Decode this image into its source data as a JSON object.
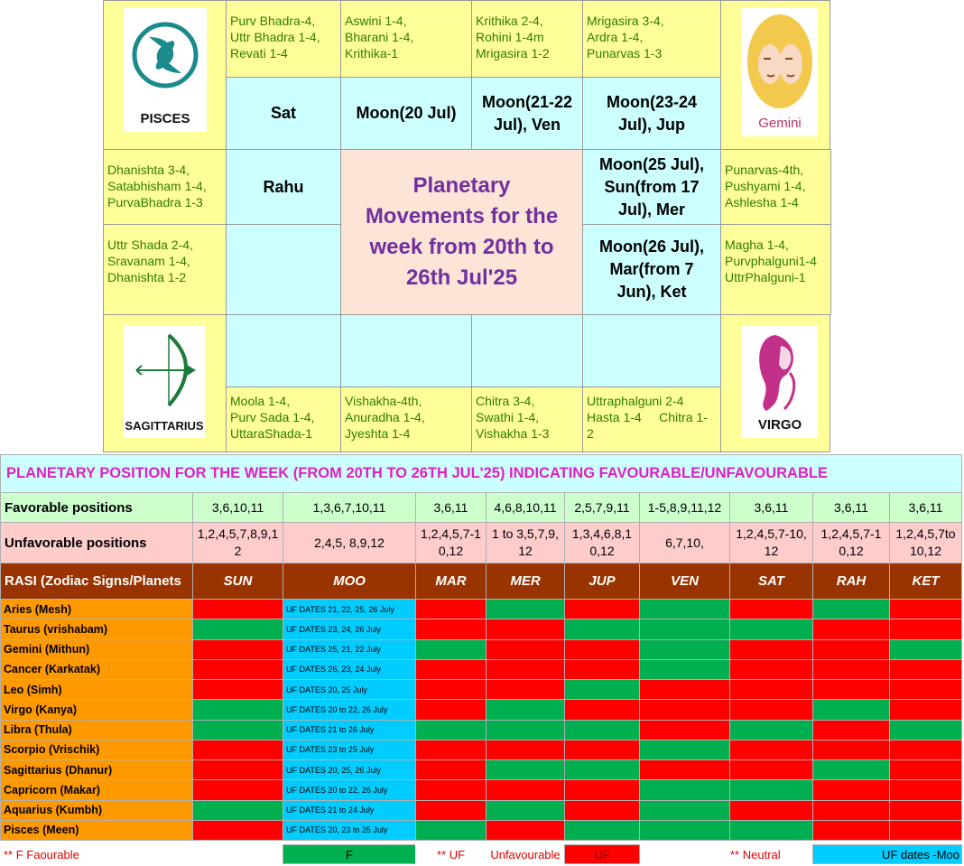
{
  "chart_box": {
    "title": [
      "Planetary",
      "Movements for the",
      "week from 20th to",
      "26th Jul'25"
    ],
    "signs": {
      "pisces": "PISCES",
      "gemini": "Gemini",
      "sagittarius": "SAGITTARIUS",
      "virgo": "VIRGO"
    },
    "nakshatras": [
      [
        "Purv Bhadra-4,",
        "Uttr Bhadra 1-4,",
        "Revati 1-4"
      ],
      [
        "Aswini 1-4,",
        "Bharani 1-4,",
        "Krithika-1"
      ],
      [
        "Krithika 2-4,",
        "Rohini 1-4m",
        "Mrigasira 1-2"
      ],
      [
        "Mrigasira 3-4,",
        "Ardra 1-4,",
        "Punarvas 1-3"
      ],
      [
        "Punarvas-4th,",
        "Pushyami 1-4,",
        "Ashlesha 1-4"
      ],
      [
        "Magha 1-4,",
        "Purvphalguni1-4",
        "UttrPhalguni-1"
      ],
      [
        "Uttraphalguni 2-4",
        "Hasta 1-4     Chitra 1-",
        "2"
      ],
      [
        "Chitra 3-4,",
        "Swathi 1-4,",
        "Vishakha 1-3"
      ],
      [
        "Vishakha-4th,",
        "Anuradha 1-4,",
        "Jyeshta 1-4"
      ],
      [
        "Moola 1-4,",
        "Purv Sada 1-4,",
        "UttaraShada-1"
      ],
      [
        "Uttr Shada 2-4,",
        "Sravanam 1-4,",
        "Dhanishta 1-2"
      ],
      [
        "Dhanishta 3-4,",
        "Satabhisham 1-4,",
        "PurvaBhadra 1-3"
      ]
    ],
    "planets": [
      [
        "Sat"
      ],
      [
        "Moon(20 Jul)"
      ],
      [
        "Moon(21-22",
        "Jul), Ven"
      ],
      [
        "Moon(23-24",
        "Jul), Jup"
      ],
      [
        "Moon(25 Jul),",
        "Sun(from 17",
        "Jul), Mer"
      ],
      [
        "Moon(26 Jul),",
        "Mar(from 7",
        "Jun), Ket"
      ],
      [
        "Rahu"
      ]
    ]
  },
  "table": {
    "title": "PLANETARY POSITION FOR THE WEEK (FROM 20TH TO 26TH JUL'25) INDICATING FAVOURABLE/UNFAVOURABLE",
    "favorable": {
      "label": "Favorable positions",
      "values": [
        "3,6,10,11",
        "1,3,6,7,10,11",
        "3,6,11",
        "4,6,8,10,11",
        "2,5,7,9,11",
        "1-5,8,9,11,12",
        "3,6,11",
        "3,6,11",
        "3,6,11"
      ]
    },
    "unfavorable": {
      "label": "Unfavorable positions",
      "values": [
        "1,2,4,5,7,8,9,12",
        "2,4,5, 8,9,12",
        "1,2,4,5,7-10,12",
        "1 to 3,5,7,9,12",
        "1,3,4,6,8,10,12",
        "6,7,10,",
        "1,2,4,5,7-10,12",
        "1,2,4,5,7-10,12",
        "1,2,4,5,7to 10,12"
      ]
    },
    "header": [
      "RASI (Zodiac Signs/Planets",
      "SUN",
      "MOO",
      "MAR",
      "MER",
      "JUP",
      "VEN",
      "SAT",
      "RAH",
      "KET"
    ],
    "rows": [
      {
        "rasi": "Aries (Mesh)",
        "moon": "UF DATES 21, 22, 25, 26 July",
        "colors": [
          "#ff0000",
          "#ff0000",
          "#00b050",
          "#ff0000",
          "#00b050",
          "#ff0000",
          "#00b050",
          "#ff0000"
        ]
      },
      {
        "rasi": "Taurus (vrishabam)",
        "moon": "UF DATES 23, 24, 26 July",
        "colors": [
          "#00b050",
          "#ff0000",
          "#ff0000",
          "#00b050",
          "#00b050",
          "#00b050",
          "#ff0000",
          "#ff0000"
        ]
      },
      {
        "rasi": "Gemini (Mithun)",
        "moon": "UF DATES 25, 21, 22 July",
        "colors": [
          "#ff0000",
          "#00b050",
          "#ff0000",
          "#ff0000",
          "#00b050",
          "#ff0000",
          "#ff0000",
          "#00b050"
        ]
      },
      {
        "rasi": "Cancer (Karkatak)",
        "moon": "UF DATES 26, 23, 24 July",
        "colors": [
          "#ff0000",
          "#ff0000",
          "#ff0000",
          "#ff0000",
          "#00b050",
          "#ff0000",
          "#ff0000",
          "#ff0000"
        ]
      },
      {
        "rasi": "Leo (Simh)",
        "moon": "UF DATES 20, 25 July",
        "colors": [
          "#ff0000",
          "#ff0000",
          "#ff0000",
          "#00b050",
          "#ff0000",
          "#ff0000",
          "#ff0000",
          "#ff0000"
        ]
      },
      {
        "rasi": "Virgo (Kanya)",
        "moon": "UF DATES 20 to 22, 26 July",
        "colors": [
          "#00b050",
          "#ff0000",
          "#00b050",
          "#ff0000",
          "#ff0000",
          "#ff0000",
          "#00b050",
          "#ff0000"
        ]
      },
      {
        "rasi": "Libra (Thula)",
        "moon": "UF DATES 21 to 26 July",
        "colors": [
          "#00b050",
          "#00b050",
          "#00b050",
          "#00b050",
          "#ff0000",
          "#00b050",
          "#ff0000",
          "#00b050"
        ]
      },
      {
        "rasi": "Scorpio (Vrischik)",
        "moon": "UF DATES 23 to 25 July",
        "colors": [
          "#ff0000",
          "#ff0000",
          "#ff0000",
          "#ff0000",
          "#00b050",
          "#ff0000",
          "#ff0000",
          "#ff0000"
        ]
      },
      {
        "rasi": "Sagittarius (Dhanur)",
        "moon": "UF DATES 20, 25, 26 July",
        "colors": [
          "#ff0000",
          "#ff0000",
          "#00b050",
          "#00b050",
          "#ff0000",
          "#ff0000",
          "#00b050",
          "#ff0000"
        ]
      },
      {
        "rasi": "Capricorn (Makar)",
        "moon": "UF DATES 20 to 22, 26 July",
        "colors": [
          "#ff0000",
          "#ff0000",
          "#ff0000",
          "#ff0000",
          "#00b050",
          "#00b050",
          "#ff0000",
          "#ff0000"
        ]
      },
      {
        "rasi": "Aquarius (Kumbh)",
        "moon": "UF DATES 21 to 24 July",
        "colors": [
          "#00b050",
          "#ff0000",
          "#00b050",
          "#ff0000",
          "#00b050",
          "#ff0000",
          "#ff0000",
          "#ff0000"
        ]
      },
      {
        "rasi": "Pisces (Meen)",
        "moon": "UF DATES 20, 23 to 25 July",
        "colors": [
          "#ff0000",
          "#00b050",
          "#ff0000",
          "#00b050",
          "#00b050",
          "#00b050",
          "#ff0000",
          "#ff0000"
        ]
      }
    ],
    "legend": [
      "** F   Faourable",
      "F",
      "** UF",
      "Unfavourable",
      "UF",
      "** Neutral",
      "UF dates -Moo"
    ]
  }
}
